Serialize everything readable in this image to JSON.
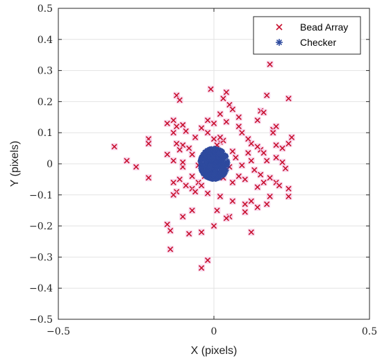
{
  "chart_data": {
    "type": "scatter",
    "title": "",
    "xlabel": "X (pixels)",
    "ylabel": "Y (pixels)",
    "xlim": [
      -0.5,
      0.5
    ],
    "ylim": [
      -0.5,
      0.5
    ],
    "xticks": [
      -0.5,
      0,
      0.5
    ],
    "xtick_labels": [
      "−0.5",
      "0",
      "0.5"
    ],
    "yticks": [
      0.5,
      0.4,
      0.3,
      0.2,
      0.1,
      0,
      -0.1,
      -0.2,
      -0.3,
      -0.4,
      -0.5
    ],
    "ytick_labels": [
      "0.5",
      "0.4",
      "0.3",
      "0.2",
      "0.1",
      "0",
      "−0.1",
      "−0.2",
      "−0.3",
      "−0.4",
      "−0.5"
    ],
    "grid": true,
    "legend_position": "top-right",
    "series": [
      {
        "name": "Bead Array",
        "marker": "x",
        "color": "#c8102e",
        "points": [
          [
            0.18,
            0.32
          ],
          [
            -0.01,
            0.24
          ],
          [
            0.04,
            0.23
          ],
          [
            0.17,
            0.22
          ],
          [
            -0.12,
            0.22
          ],
          [
            0.24,
            0.21
          ],
          [
            -0.11,
            0.205
          ],
          [
            0.05,
            0.19
          ],
          [
            0.03,
            0.21
          ],
          [
            0.15,
            0.17
          ],
          [
            0.16,
            0.165
          ],
          [
            -0.15,
            0.13
          ],
          [
            -0.13,
            0.14
          ],
          [
            0.08,
            0.15
          ],
          [
            -0.02,
            0.14
          ],
          [
            0.06,
            0.175
          ],
          [
            0.14,
            0.14
          ],
          [
            0.0,
            0.13
          ],
          [
            0.04,
            0.135
          ],
          [
            -0.1,
            0.125
          ],
          [
            -0.12,
            0.12
          ],
          [
            0.02,
            0.16
          ],
          [
            0.08,
            0.12
          ],
          [
            -0.09,
            0.105
          ],
          [
            -0.02,
            0.1
          ],
          [
            0.19,
            0.11
          ],
          [
            0.19,
            0.1
          ],
          [
            0.2,
            0.12
          ],
          [
            -0.21,
            0.08
          ],
          [
            -0.13,
            0.1
          ],
          [
            -0.06,
            0.085
          ],
          [
            0.25,
            0.085
          ],
          [
            -0.21,
            0.065
          ],
          [
            -0.12,
            0.065
          ],
          [
            -0.1,
            0.06
          ],
          [
            -0.32,
            0.055
          ],
          [
            -0.11,
            0.045
          ],
          [
            -0.08,
            0.05
          ],
          [
            -0.07,
            0.03
          ],
          [
            -0.15,
            0.03
          ],
          [
            0.15,
            0.045
          ],
          [
            0.2,
            0.06
          ],
          [
            0.22,
            0.05
          ],
          [
            0.24,
            0.065
          ],
          [
            0.12,
            0.065
          ],
          [
            0.14,
            0.055
          ],
          [
            0.11,
            0.08
          ],
          [
            0.06,
            0.04
          ],
          [
            0.07,
            0.02
          ],
          [
            0.02,
            0.07
          ],
          [
            0.0,
            0.08
          ],
          [
            0.03,
            0.075
          ],
          [
            0.01,
            0.06
          ],
          [
            0.12,
            0.01
          ],
          [
            0.11,
            0.035
          ],
          [
            0.16,
            0.035
          ],
          [
            0.17,
            0.01
          ],
          [
            0.2,
            0.02
          ],
          [
            0.22,
            0.005
          ],
          [
            0.23,
            -0.015
          ],
          [
            -0.28,
            0.01
          ],
          [
            -0.25,
            -0.01
          ],
          [
            -0.13,
            0.01
          ],
          [
            -0.1,
            -0.01
          ],
          [
            -0.05,
            -0.005
          ],
          [
            -0.21,
            -0.045
          ],
          [
            -0.13,
            -0.06
          ],
          [
            -0.11,
            -0.05
          ],
          [
            -0.07,
            -0.04
          ],
          [
            -0.05,
            -0.06
          ],
          [
            0.06,
            -0.06
          ],
          [
            0.08,
            -0.04
          ],
          [
            0.1,
            -0.05
          ],
          [
            0.16,
            -0.06
          ],
          [
            0.18,
            -0.045
          ],
          [
            0.14,
            -0.075
          ],
          [
            0.2,
            -0.06
          ],
          [
            0.21,
            -0.07
          ],
          [
            0.24,
            -0.08
          ],
          [
            0.24,
            -0.105
          ],
          [
            -0.04,
            -0.07
          ],
          [
            -0.07,
            -0.08
          ],
          [
            -0.09,
            -0.07
          ],
          [
            -0.12,
            -0.09
          ],
          [
            -0.13,
            -0.1
          ],
          [
            -0.06,
            -0.09
          ],
          [
            -0.02,
            -0.095
          ],
          [
            0.02,
            -0.105
          ],
          [
            0.06,
            -0.12
          ],
          [
            0.1,
            -0.13
          ],
          [
            0.12,
            -0.12
          ],
          [
            0.14,
            -0.14
          ],
          [
            0.17,
            -0.13
          ],
          [
            0.18,
            -0.105
          ],
          [
            -0.07,
            -0.15
          ],
          [
            -0.1,
            -0.17
          ],
          [
            0.01,
            -0.15
          ],
          [
            0.05,
            -0.17
          ],
          [
            0.1,
            -0.155
          ],
          [
            0.04,
            -0.175
          ],
          [
            -0.15,
            -0.195
          ],
          [
            -0.14,
            -0.215
          ],
          [
            -0.08,
            -0.225
          ],
          [
            -0.04,
            -0.22
          ],
          [
            0.0,
            -0.2
          ],
          [
            0.12,
            -0.22
          ],
          [
            -0.14,
            -0.275
          ],
          [
            -0.02,
            -0.31
          ],
          [
            -0.04,
            -0.335
          ],
          [
            -0.1,
            0.005
          ],
          [
            0.09,
            -0.005
          ],
          [
            0.05,
            -0.01
          ],
          [
            0.13,
            -0.02
          ],
          [
            0.15,
            -0.035
          ],
          [
            0.02,
            0.085
          ],
          [
            -0.04,
            0.115
          ],
          [
            0.09,
            0.1
          ],
          [
            -0.03,
            -0.04
          ],
          [
            0.03,
            -0.045
          ],
          [
            -0.01,
            -0.03
          ]
        ]
      },
      {
        "name": "Checker",
        "marker": "asterisk",
        "color": "#2e4a9e",
        "cluster": {
          "center": [
            0.0,
            0.0
          ],
          "spread_x": 0.025,
          "spread_y": 0.028,
          "count": 400
        }
      }
    ]
  }
}
